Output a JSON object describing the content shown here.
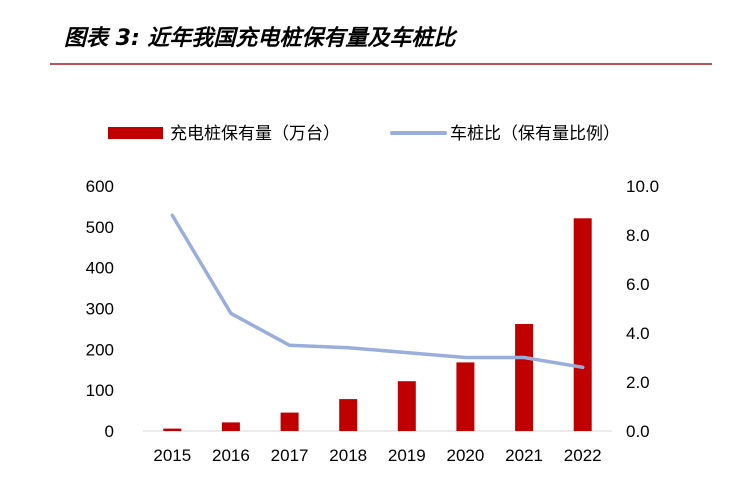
{
  "header": {
    "title": "图表 3:  近年我国充电桩保有量及车桩比"
  },
  "colors": {
    "rule": "#a31d26",
    "bar": "#c00000",
    "line": "#9aaedb"
  },
  "chart_data": {
    "type": "bar",
    "title": "图表 3:  近年我国充电桩保有量及车桩比",
    "xlabel": "",
    "ylabel": "",
    "categories": [
      "2015",
      "2016",
      "2017",
      "2018",
      "2019",
      "2020",
      "2021",
      "2022"
    ],
    "series": [
      {
        "name": "充电桩保有量（万台）",
        "type": "bar",
        "axis": "left",
        "values": [
          6,
          21,
          45,
          78,
          122,
          168,
          262,
          521
        ]
      },
      {
        "name": "车桩比（保有量比例）",
        "type": "line",
        "axis": "right",
        "values": [
          8.8,
          4.8,
          3.5,
          3.4,
          3.2,
          3.0,
          3.0,
          2.6
        ]
      }
    ],
    "ylim": [
      0,
      600
    ],
    "y_ticks": [
      "0",
      "100",
      "200",
      "300",
      "400",
      "500",
      "600"
    ],
    "y2lim": [
      0,
      10
    ],
    "y2_ticks": [
      "0.0",
      "2.0",
      "4.0",
      "6.0",
      "8.0",
      "10.0"
    ],
    "grid": false,
    "legend_position": "top"
  }
}
